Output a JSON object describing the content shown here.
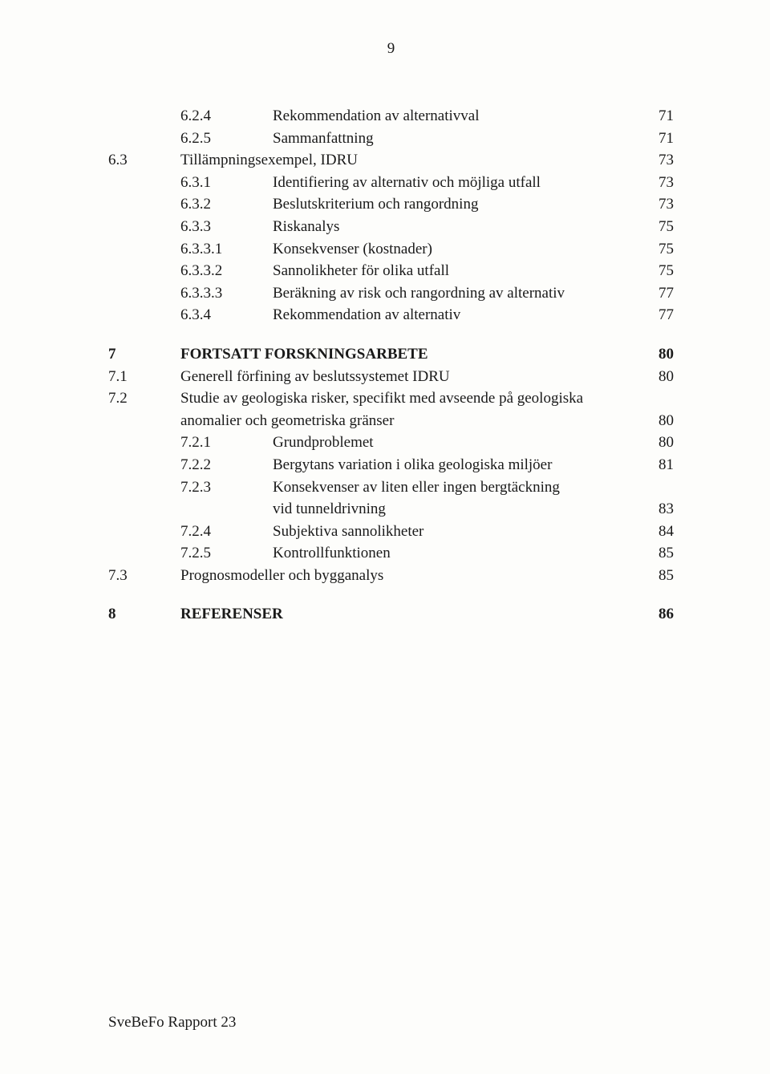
{
  "page_number": "9",
  "footer": "SveBeFo Rapport 23",
  "entries": [
    {
      "section": "",
      "subsection": "6.2.4",
      "title": "Rekommendation av alternativval",
      "page": "71",
      "bold": false,
      "gap": false
    },
    {
      "section": "",
      "subsection": "6.2.5",
      "title": "Sammanfattning",
      "page": "71",
      "bold": false,
      "gap": false
    },
    {
      "section": "6.3",
      "subsection": "",
      "title": "Tillämpningsexempel, IDRU",
      "page": "73",
      "bold": false,
      "gap": false,
      "title_in_sub": true
    },
    {
      "section": "",
      "subsection": "6.3.1",
      "title": "Identifiering av alternativ och möjliga utfall",
      "page": "73",
      "bold": false,
      "gap": false
    },
    {
      "section": "",
      "subsection": "6.3.2",
      "title": "Beslutskriterium och rangordning",
      "page": "73",
      "bold": false,
      "gap": false
    },
    {
      "section": "",
      "subsection": "6.3.3",
      "title": "Riskanalys",
      "page": "75",
      "bold": false,
      "gap": false
    },
    {
      "section": "",
      "subsection": "6.3.3.1",
      "title": "Konsekvenser (kostnader)",
      "page": "75",
      "bold": false,
      "gap": false
    },
    {
      "section": "",
      "subsection": "6.3.3.2",
      "title": "Sannolikheter för olika utfall",
      "page": "75",
      "bold": false,
      "gap": false
    },
    {
      "section": "",
      "subsection": "6.3.3.3",
      "title": "Beräkning av risk och rangordning av alternativ",
      "page": "77",
      "bold": false,
      "gap": false
    },
    {
      "section": "",
      "subsection": "6.3.4",
      "title": "Rekommendation av alternativ",
      "page": "77",
      "bold": false,
      "gap": false
    },
    {
      "section": "7",
      "subsection": "",
      "title": "FORTSATT FORSKNINGSARBETE",
      "page": "80",
      "bold": true,
      "gap": true,
      "title_in_sub": true
    },
    {
      "section": "7.1",
      "subsection": "",
      "title": "Generell förfining av beslutssystemet IDRU",
      "page": "80",
      "bold": false,
      "gap": false,
      "title_in_sub": true
    },
    {
      "section": "7.2",
      "subsection": "",
      "title": "Studie av geologiska risker, specifikt med avseende på geologiska",
      "page": "",
      "bold": false,
      "gap": false,
      "title_in_sub": true
    },
    {
      "section": "",
      "subsection": "",
      "title": "anomalier och geometriska gränser",
      "page": "80",
      "bold": false,
      "gap": false,
      "title_in_sub": true
    },
    {
      "section": "",
      "subsection": "7.2.1",
      "title": "Grundproblemet",
      "page": "80",
      "bold": false,
      "gap": false
    },
    {
      "section": "",
      "subsection": "7.2.2",
      "title": "Bergytans variation i olika geologiska miljöer",
      "page": "81",
      "bold": false,
      "gap": false
    },
    {
      "section": "",
      "subsection": "7.2.3",
      "title": "Konsekvenser av liten eller ingen bergtäckning",
      "page": "",
      "bold": false,
      "gap": false
    },
    {
      "section": "",
      "subsection": "",
      "title": "vid tunneldrivning",
      "page": "83",
      "bold": false,
      "gap": false,
      "title_only": true
    },
    {
      "section": "",
      "subsection": "7.2.4",
      "title": "Subjektiva sannolikheter",
      "page": "84",
      "bold": false,
      "gap": false
    },
    {
      "section": "",
      "subsection": "7.2.5",
      "title": "Kontrollfunktionen",
      "page": "85",
      "bold": false,
      "gap": false
    },
    {
      "section": "7.3",
      "subsection": "",
      "title": "Prognosmodeller och bygganalys",
      "page": "85",
      "bold": false,
      "gap": false,
      "title_in_sub": true
    },
    {
      "section": "8",
      "subsection": "",
      "title": "REFERENSER",
      "page": "86",
      "bold": true,
      "gap": true,
      "title_in_sub": true
    }
  ]
}
